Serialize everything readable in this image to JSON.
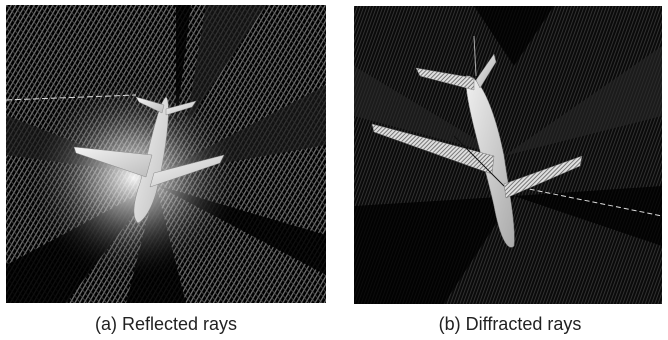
{
  "figure": {
    "panel_a": {
      "caption": "(a) Reflected rays"
    },
    "panel_b": {
      "caption": "(b) Diffracted rays"
    }
  }
}
